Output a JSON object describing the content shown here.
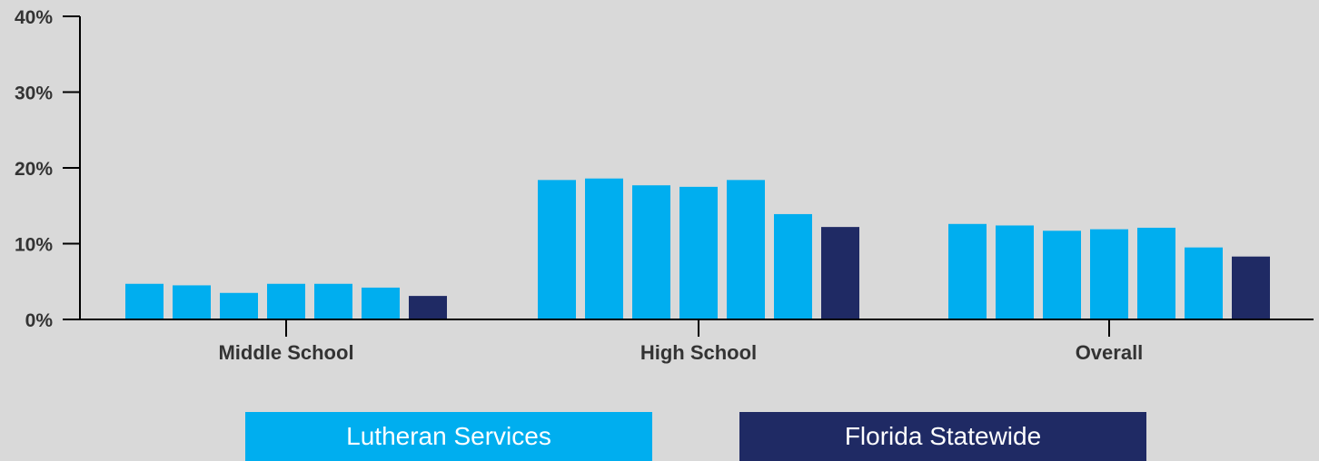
{
  "chart_data": {
    "type": "bar",
    "categories": [
      "Middle School",
      "High School",
      "Overall"
    ],
    "series": [
      {
        "values": [
          4.7,
          18.4,
          12.6
        ]
      },
      {
        "values": [
          4.5,
          18.6,
          12.4
        ]
      },
      {
        "values": [
          3.5,
          17.7,
          11.7
        ]
      },
      {
        "values": [
          4.7,
          17.5,
          11.9
        ]
      },
      {
        "values": [
          4.7,
          18.4,
          12.1
        ]
      },
      {
        "values": [
          4.2,
          13.9,
          9.5
        ]
      },
      {
        "values": [
          3.1,
          12.2,
          8.3
        ]
      }
    ],
    "series_colors": [
      "#00aeef",
      "#00aeef",
      "#00aeef",
      "#00aeef",
      "#00aeef",
      "#00aeef",
      "#1f2a64"
    ],
    "ylim": [
      0,
      40
    ],
    "yticks": [
      0,
      10,
      20,
      30,
      40
    ],
    "ytick_labels": [
      "0%",
      "10%",
      "20%",
      "30%",
      "40%"
    ],
    "grid": false,
    "legend_position": "bottom"
  },
  "legend": [
    {
      "label": "Lutheran Services",
      "color": "#00aeef"
    },
    {
      "label": "Florida Statewide",
      "color": "#1f2a64"
    }
  ]
}
